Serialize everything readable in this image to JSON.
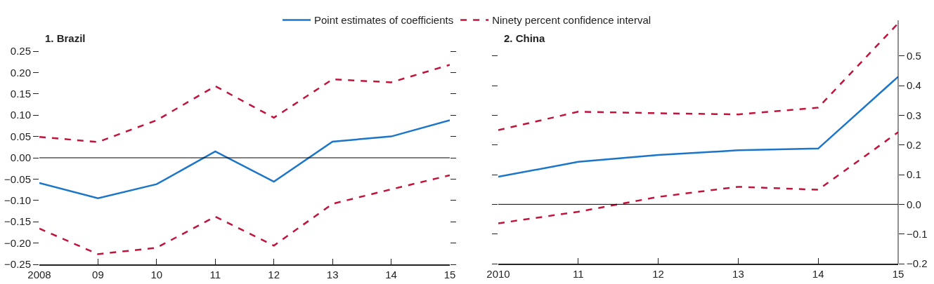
{
  "chart_data": [
    {
      "type": "line",
      "title": "1. Brazil",
      "x": [
        2008,
        2009,
        2010,
        2011,
        2012,
        2013,
        2014,
        2015
      ],
      "series": [
        {
          "name": "Point estimates of coefficients",
          "color": "#1b75c9",
          "line_style": "solid",
          "values": [
            -0.059,
            -0.095,
            -0.062,
            0.015,
            -0.056,
            0.038,
            0.05,
            0.088
          ]
        },
        {
          "name": "Ninety percent confidence interval",
          "color": "#c0143c",
          "line_style": "dashed",
          "values": [
            0.049,
            0.037,
            0.088,
            0.168,
            0.094,
            0.184,
            0.177,
            0.218
          ]
        },
        {
          "color": "#c0143c",
          "line_style": "dashed",
          "values": [
            -0.166,
            -0.226,
            -0.211,
            -0.138,
            -0.206,
            -0.108,
            -0.074,
            -0.041
          ]
        }
      ],
      "xlim": [
        2008,
        2015
      ],
      "xticks": [
        2008,
        {
          "value": 2009,
          "label": "09"
        },
        {
          "value": 2010,
          "label": "10"
        },
        {
          "value": 2011,
          "label": "11"
        },
        {
          "value": 2012,
          "label": "12"
        },
        {
          "value": 2013,
          "label": "13"
        },
        {
          "value": 2014,
          "label": "14"
        },
        {
          "value": 2015,
          "label": "15"
        }
      ],
      "ylim": [
        -0.25,
        0.25
      ],
      "yticks": [
        {
          "value": -0.25,
          "label": "−0.25"
        },
        {
          "value": -0.2,
          "label": "−0.20"
        },
        {
          "value": -0.15,
          "label": "−0.15"
        },
        {
          "value": -0.1,
          "label": "−0.10"
        },
        {
          "value": -0.05,
          "label": "−0.05"
        },
        {
          "value": 0,
          "label": "0.00"
        },
        {
          "value": 0.05,
          "label": "0.05"
        },
        {
          "value": 0.1,
          "label": "0.10"
        },
        {
          "value": 0.15,
          "label": "0.15"
        },
        {
          "value": 0.2,
          "label": "0.20"
        },
        {
          "value": 0.25,
          "label": "0.25"
        }
      ],
      "ref_lines": [
        {
          "axis": "y",
          "value": 0,
          "color": "#000000"
        }
      ],
      "grid": false,
      "legend": "top",
      "marker": "none"
    },
    {
      "type": "line",
      "title": "2. China",
      "x": [
        2010,
        2011,
        2012,
        2013,
        2014,
        2015
      ],
      "series": [
        {
          "color": "#1b75c9",
          "line_style": "solid",
          "values": [
            0.093,
            0.143,
            0.166,
            0.182,
            0.188,
            0.43
          ]
        },
        {
          "color": "#c0143c",
          "line_style": "dashed",
          "values": [
            0.25,
            0.312,
            0.307,
            0.303,
            0.326,
            0.61
          ]
        },
        {
          "color": "#c0143c",
          "line_style": "dashed",
          "values": [
            -0.064,
            -0.025,
            0.025,
            0.059,
            0.049,
            0.243
          ]
        }
      ],
      "xlim": [
        2010,
        2015
      ],
      "xticks": [
        2010,
        {
          "value": 2011,
          "label": "11"
        },
        {
          "value": 2012,
          "label": "12"
        },
        {
          "value": 2013,
          "label": "13"
        },
        {
          "value": 2014,
          "label": "14"
        },
        {
          "value": 2015,
          "label": "15"
        }
      ],
      "ylim": [
        -0.2,
        0.62
      ],
      "yticks": [
        {
          "value": -0.2,
          "label": "−0.2"
        },
        {
          "value": -0.1,
          "label": "−0.1"
        },
        {
          "value": 0,
          "label": "0.0"
        },
        0.1,
        0.2,
        0.3,
        0.4,
        0.5
      ],
      "ref_lines": [
        {
          "axis": "y",
          "value": 0,
          "color": "#000000"
        }
      ],
      "grid": false,
      "legend": false,
      "marker": "none"
    }
  ]
}
